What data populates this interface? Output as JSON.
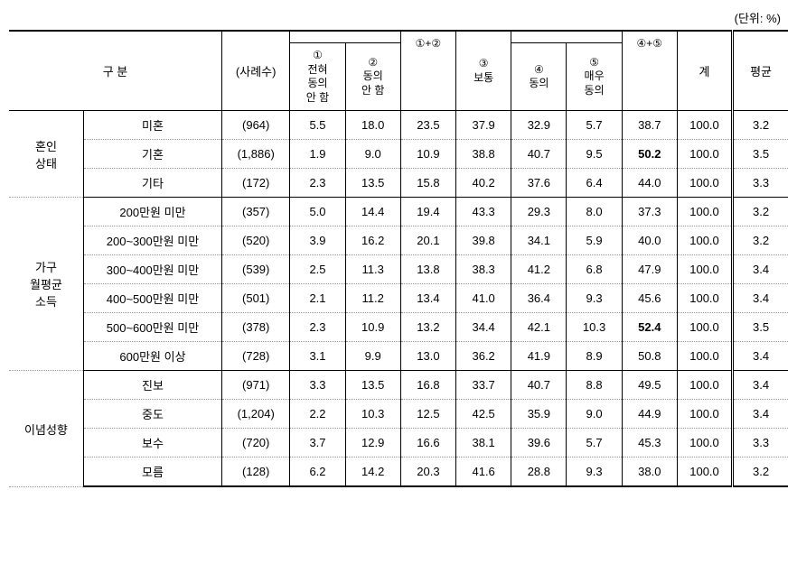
{
  "unit": "(단위: %)",
  "headers": {
    "category": "구        분",
    "n": "(사례수)",
    "c1": "①\n전혀\n동의\n안 함",
    "c2": "②\n동의\n안 함",
    "c12": "①+②",
    "c3": "③\n보통",
    "c4": "④\n동의",
    "c5": "⑤\n매우\n동의",
    "c45": "④+⑤",
    "total": "계",
    "avg": "평균"
  },
  "sections": [
    {
      "label": "혼인\n상태",
      "rows": [
        {
          "label": "미혼",
          "n": "(964)",
          "v": [
            "5.5",
            "18.0",
            "23.5",
            "37.9",
            "32.9",
            "5.7",
            "38.7",
            "100.0",
            "3.2"
          ],
          "bold": []
        },
        {
          "label": "기혼",
          "n": "(1,886)",
          "v": [
            "1.9",
            "9.0",
            "10.9",
            "38.8",
            "40.7",
            "9.5",
            "50.2",
            "100.0",
            "3.5"
          ],
          "bold": [
            6
          ]
        },
        {
          "label": "기타",
          "n": "(172)",
          "v": [
            "2.3",
            "13.5",
            "15.8",
            "40.2",
            "37.6",
            "6.4",
            "44.0",
            "100.0",
            "3.3"
          ],
          "bold": []
        }
      ]
    },
    {
      "label": "가구\n월평균\n소득",
      "rows": [
        {
          "label": "200만원 미만",
          "n": "(357)",
          "v": [
            "5.0",
            "14.4",
            "19.4",
            "43.3",
            "29.3",
            "8.0",
            "37.3",
            "100.0",
            "3.2"
          ],
          "bold": []
        },
        {
          "label": "200~300만원 미만",
          "n": "(520)",
          "v": [
            "3.9",
            "16.2",
            "20.1",
            "39.8",
            "34.1",
            "5.9",
            "40.0",
            "100.0",
            "3.2"
          ],
          "bold": []
        },
        {
          "label": "300~400만원 미만",
          "n": "(539)",
          "v": [
            "2.5",
            "11.3",
            "13.8",
            "38.3",
            "41.2",
            "6.8",
            "47.9",
            "100.0",
            "3.4"
          ],
          "bold": []
        },
        {
          "label": "400~500만원 미만",
          "n": "(501)",
          "v": [
            "2.1",
            "11.2",
            "13.4",
            "41.0",
            "36.4",
            "9.3",
            "45.6",
            "100.0",
            "3.4"
          ],
          "bold": []
        },
        {
          "label": "500~600만원 미만",
          "n": "(378)",
          "v": [
            "2.3",
            "10.9",
            "13.2",
            "34.4",
            "42.1",
            "10.3",
            "52.4",
            "100.0",
            "3.5"
          ],
          "bold": [
            6
          ]
        },
        {
          "label": "600만원 이상",
          "n": "(728)",
          "v": [
            "3.1",
            "9.9",
            "13.0",
            "36.2",
            "41.9",
            "8.9",
            "50.8",
            "100.0",
            "3.4"
          ],
          "bold": []
        }
      ]
    },
    {
      "label": "이념성향",
      "rows": [
        {
          "label": "진보",
          "n": "(971)",
          "v": [
            "3.3",
            "13.5",
            "16.8",
            "33.7",
            "40.7",
            "8.8",
            "49.5",
            "100.0",
            "3.4"
          ],
          "bold": []
        },
        {
          "label": "중도",
          "n": "(1,204)",
          "v": [
            "2.2",
            "10.3",
            "12.5",
            "42.5",
            "35.9",
            "9.0",
            "44.9",
            "100.0",
            "3.4"
          ],
          "bold": []
        },
        {
          "label": "보수",
          "n": "(720)",
          "v": [
            "3.7",
            "12.9",
            "16.6",
            "38.1",
            "39.6",
            "5.7",
            "45.3",
            "100.0",
            "3.3"
          ],
          "bold": []
        },
        {
          "label": "모름",
          "n": "(128)",
          "v": [
            "6.2",
            "14.2",
            "20.3",
            "41.6",
            "28.8",
            "9.3",
            "38.0",
            "100.0",
            "3.2"
          ],
          "bold": []
        }
      ]
    }
  ]
}
